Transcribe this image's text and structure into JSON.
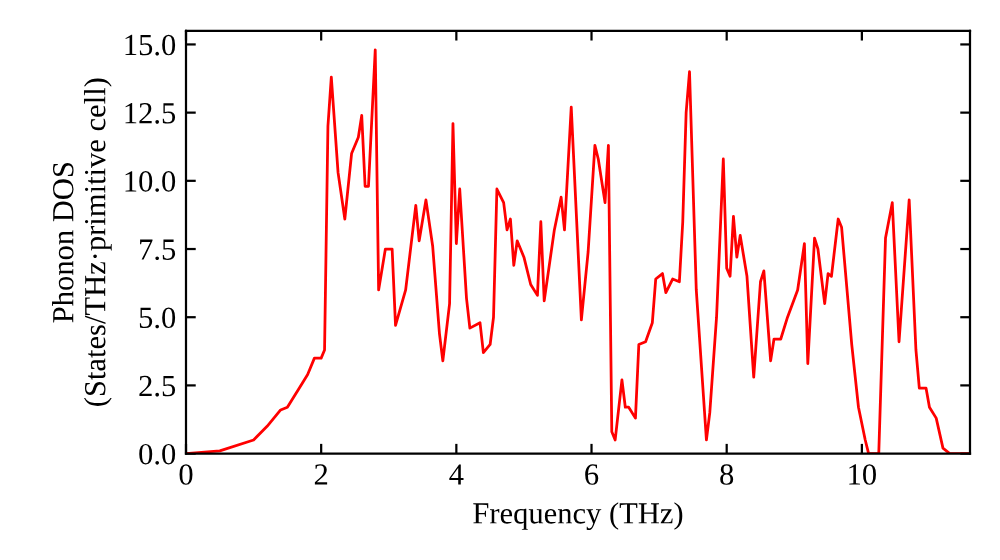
{
  "chart_data": {
    "type": "line",
    "xlabel": "Frequency (THz)",
    "ylabel": "Phonon DOS\n(States/THz·primitive cell)",
    "xlim": [
      0,
      11.6
    ],
    "ylim": [
      0,
      15.5
    ],
    "xticks": [
      0,
      2,
      4,
      6,
      8,
      10
    ],
    "yticks": [
      {
        "value": 0,
        "label": "0.0"
      },
      {
        "value": 2.5,
        "label": "2.5"
      },
      {
        "value": 5,
        "label": "5.0"
      },
      {
        "value": 7.5,
        "label": "7.5"
      },
      {
        "value": 10,
        "label": "10.0"
      },
      {
        "value": 12.5,
        "label": "12.5"
      },
      {
        "value": 15,
        "label": "15.0"
      }
    ],
    "grid": false,
    "legend": false,
    "marker": "none",
    "line_style": "solid",
    "series": [
      {
        "color": "#ff0000",
        "x": [
          0,
          0.5,
          1.0,
          1.2,
          1.4,
          1.5,
          1.7,
          1.8,
          1.9,
          2.0,
          2.05,
          2.1,
          2.15,
          2.25,
          2.35,
          2.45,
          2.55,
          2.6,
          2.65,
          2.7,
          2.8,
          2.85,
          2.95,
          3.05,
          3.1,
          3.25,
          3.4,
          3.45,
          3.55,
          3.65,
          3.75,
          3.8,
          3.9,
          3.95,
          4.0,
          4.05,
          4.15,
          4.2,
          4.35,
          4.4,
          4.5,
          4.55,
          4.6,
          4.7,
          4.75,
          4.8,
          4.85,
          4.9,
          5.0,
          5.1,
          5.2,
          5.25,
          5.3,
          5.45,
          5.55,
          5.6,
          5.7,
          5.85,
          5.95,
          6.05,
          6.1,
          6.2,
          6.25,
          6.3,
          6.35,
          6.45,
          6.5,
          6.55,
          6.65,
          6.7,
          6.8,
          6.9,
          6.95,
          7.05,
          7.1,
          7.2,
          7.3,
          7.35,
          7.4,
          7.45,
          7.55,
          7.7,
          7.75,
          7.85,
          7.95,
          8.0,
          8.05,
          8.1,
          8.15,
          8.2,
          8.3,
          8.4,
          8.5,
          8.55,
          8.65,
          8.7,
          8.8,
          8.9,
          9.05,
          9.15,
          9.2,
          9.3,
          9.35,
          9.45,
          9.5,
          9.55,
          9.65,
          9.7,
          9.85,
          9.95,
          10.05,
          10.1,
          10.25,
          10.35,
          10.45,
          10.55,
          10.7,
          10.8,
          10.85,
          10.95,
          11.0,
          11.1,
          11.2,
          11.3,
          11.6
        ],
        "values": [
          0,
          0.1,
          0.5,
          1.0,
          1.6,
          1.7,
          2.5,
          2.9,
          3.5,
          3.5,
          3.8,
          12.0,
          13.8,
          10.3,
          8.6,
          11.0,
          11.6,
          12.4,
          9.8,
          9.8,
          14.8,
          6.0,
          7.5,
          7.5,
          4.7,
          6.0,
          9.1,
          7.8,
          9.3,
          7.6,
          4.4,
          3.4,
          5.5,
          12.1,
          7.7,
          9.7,
          5.7,
          4.6,
          4.8,
          3.7,
          4.0,
          5.0,
          9.7,
          9.2,
          8.2,
          8.6,
          6.9,
          7.8,
          7.2,
          6.2,
          5.8,
          8.5,
          5.6,
          8.2,
          9.4,
          8.2,
          12.7,
          4.9,
          7.4,
          11.3,
          10.8,
          9.2,
          11.3,
          0.8,
          0.5,
          2.7,
          1.7,
          1.7,
          1.3,
          4.0,
          4.1,
          4.8,
          6.4,
          6.6,
          5.9,
          6.4,
          6.3,
          8.5,
          12.5,
          14.0,
          6.0,
          0.5,
          1.5,
          5.0,
          10.8,
          6.8,
          6.5,
          8.7,
          7.2,
          8.0,
          6.5,
          2.8,
          6.3,
          6.7,
          3.4,
          4.2,
          4.2,
          5.0,
          6.0,
          7.7,
          3.3,
          7.9,
          7.5,
          5.5,
          6.6,
          6.5,
          8.6,
          8.3,
          4.0,
          1.7,
          0.5,
          0.0,
          0.0,
          7.9,
          9.2,
          4.1,
          9.3,
          3.8,
          2.4,
          2.4,
          1.7,
          1.3,
          0.2,
          0.0,
          0.0
        ]
      }
    ]
  }
}
